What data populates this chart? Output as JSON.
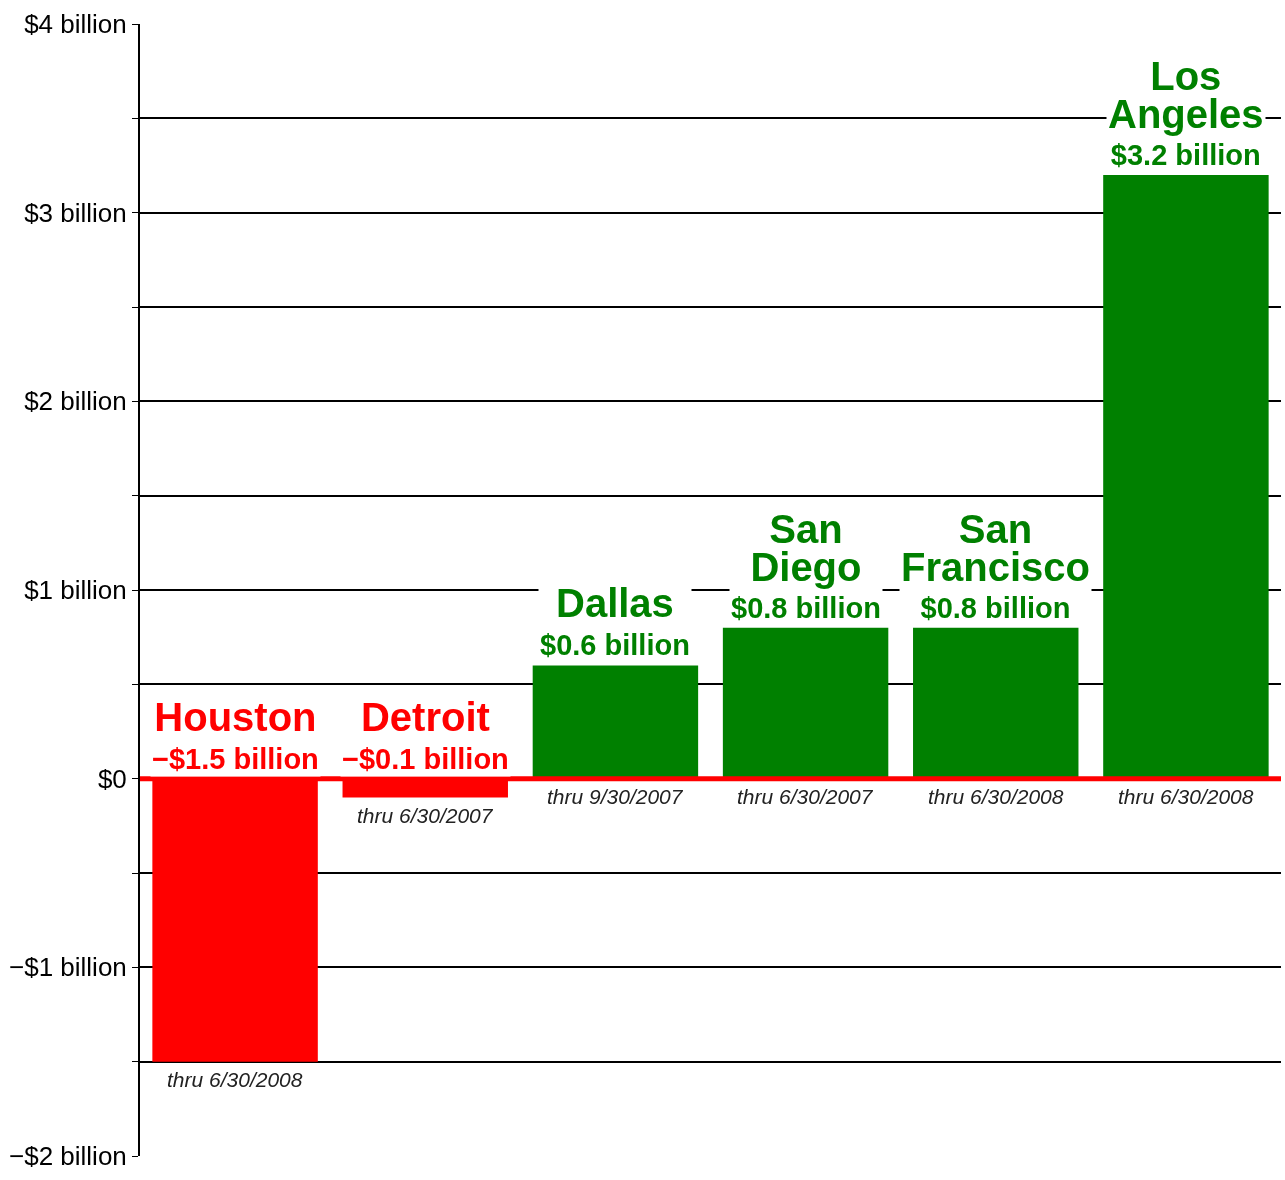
{
  "chart_data": {
    "type": "bar",
    "categories": [
      "Houston",
      "Detroit",
      "Dallas",
      "San Diego",
      "San Francisco",
      "Los Angeles"
    ],
    "values": [
      -1.5,
      -0.1,
      0.6,
      0.8,
      0.8,
      3.2
    ],
    "colors": [
      "#ff0000",
      "#ff0000",
      "#008000",
      "#008000",
      "#008000",
      "#008000"
    ],
    "value_labels": [
      "−$1.5 billion",
      "−$0.1 billion",
      "$0.6 billion",
      "$0.8 billion",
      "$0.8 billion",
      "$3.2 billion"
    ],
    "ylim": [
      -2,
      4
    ],
    "yticks": [
      {
        "value": -2,
        "label": "−$2 billion"
      },
      {
        "value": -1.5,
        "label": null
      },
      {
        "value": -1,
        "label": "−$1 billion"
      },
      {
        "value": -0.5,
        "label": null
      },
      {
        "value": 0,
        "label": "$0"
      },
      {
        "value": 0.5,
        "label": null
      },
      {
        "value": 1,
        "label": "$1 billion"
      },
      {
        "value": 1.5,
        "label": null
      },
      {
        "value": 2,
        "label": "$2 billion"
      },
      {
        "value": 2.5,
        "label": null
      },
      {
        "value": 3,
        "label": "$3 billion"
      },
      {
        "value": 3.5,
        "label": null
      },
      {
        "value": 4,
        "label": "$4 billion"
      }
    ],
    "grid": "y",
    "tick_labels": "y",
    "ref_lines": [
      {
        "axis": "y",
        "value": 0,
        "color": "#ff0000"
      }
    ],
    "annotations": [
      "thru 6/30/2008",
      "thru 6/30/2007",
      "thru 9/30/2007",
      "thru 6/30/2007",
      "thru 6/30/2008",
      "thru 6/30/2008"
    ]
  }
}
